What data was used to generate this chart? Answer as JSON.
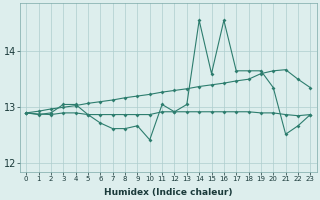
{
  "xlabel": "Humidex (Indice chaleur)",
  "x": [
    0,
    1,
    2,
    3,
    4,
    5,
    6,
    7,
    8,
    9,
    10,
    11,
    12,
    13,
    14,
    15,
    16,
    17,
    18,
    19,
    20,
    21,
    22,
    23
  ],
  "line_jagged": [
    12.9,
    12.87,
    12.9,
    13.05,
    13.05,
    12.87,
    12.72,
    12.62,
    12.62,
    12.67,
    12.42,
    13.05,
    12.92,
    13.05,
    14.55,
    13.6,
    14.55,
    13.65,
    13.65,
    13.65,
    13.35,
    12.52,
    12.67,
    12.87
  ],
  "line_flat": [
    12.9,
    12.88,
    12.87,
    12.9,
    12.9,
    12.87,
    12.87,
    12.87,
    12.87,
    12.87,
    12.87,
    12.92,
    12.92,
    12.92,
    12.92,
    12.92,
    12.92,
    12.92,
    12.92,
    12.9,
    12.9,
    12.87,
    12.85,
    12.87
  ],
  "line_trend": [
    12.9,
    12.93,
    12.97,
    13.0,
    13.03,
    13.07,
    13.1,
    13.13,
    13.17,
    13.2,
    13.23,
    13.27,
    13.3,
    13.33,
    13.37,
    13.4,
    13.43,
    13.47,
    13.5,
    13.6,
    13.65,
    13.67,
    13.5,
    13.35
  ],
  "line_color": "#2d7d6e",
  "bg_color": "#ddeeed",
  "grid_color": "#aecece",
  "ylim": [
    11.85,
    14.85
  ],
  "yticks": [
    12,
    13,
    14
  ],
  "xticks": [
    0,
    1,
    2,
    3,
    4,
    5,
    6,
    7,
    8,
    9,
    10,
    11,
    12,
    13,
    14,
    15,
    16,
    17,
    18,
    19,
    20,
    21,
    22,
    23
  ]
}
